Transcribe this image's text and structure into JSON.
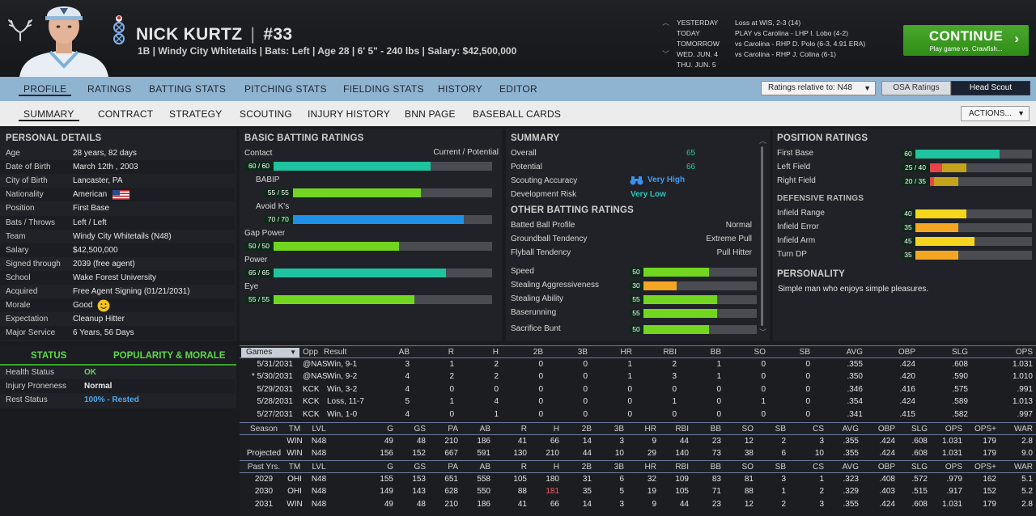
{
  "player": {
    "name": "NICK KURTZ",
    "separator": "|",
    "number": "#33",
    "info": "1B | Windy City Whitetails | Bats: Left | Age 28 | 6' 5\" - 240 lbs | Salary: $42,500,000"
  },
  "schedule": [
    {
      "day": "YESTERDAY",
      "text": "Loss at WIS, 2-3 (14)"
    },
    {
      "day": "TODAY",
      "text": "PLAY vs Carolina - LHP I. Lobo (4-2)"
    },
    {
      "day": "TOMORROW",
      "text": "vs Carolina - RHP D. Polo (6-3, 4.91 ERA)"
    },
    {
      "day": "WED. JUN. 4",
      "text": "vs Carolina - RHP J. Colina (6-1)"
    },
    {
      "day": "THU. JUN. 5",
      "text": ""
    }
  ],
  "continue": {
    "label": "CONTINUE",
    "sub": "Play game vs. Crawfish...",
    "chevron": "›"
  },
  "nav1": {
    "tabs": [
      "PROFILE",
      "RATINGS",
      "BATTING STATS",
      "PITCHING STATS",
      "FIELDING STATS",
      "HISTORY",
      "EDITOR"
    ],
    "ratings_relative": "Ratings relative to: N48",
    "osa": "OSA Ratings",
    "head_scout": "Head Scout"
  },
  "nav2": {
    "tabs": [
      "SUMMARY",
      "CONTRACT",
      "STRATEGY",
      "SCOUTING",
      "INJURY HISTORY",
      "BNN PAGE",
      "BASEBALL CARDS"
    ],
    "actions": "ACTIONS..."
  },
  "personal": {
    "title": "PERSONAL DETAILS",
    "rows": [
      {
        "k": "Age",
        "v": "28 years, 82 days"
      },
      {
        "k": "Date of Birth",
        "v": "March 12th , 2003"
      },
      {
        "k": "City of Birth",
        "v": "Lancaster, PA"
      },
      {
        "k": "Nationality",
        "v": "American"
      },
      {
        "k": "Position",
        "v": "First Base"
      },
      {
        "k": "Bats / Throws",
        "v": "Left / Left"
      },
      {
        "k": "Team",
        "v": "Windy City Whitetails (N48)"
      },
      {
        "k": "Salary",
        "v": "$42,500,000"
      },
      {
        "k": "Signed through",
        "v": "2039 (free agent)"
      },
      {
        "k": "School",
        "v": "Wake Forest University"
      },
      {
        "k": "Acquired",
        "v": "Free Agent Signing (01/21/2031)"
      },
      {
        "k": "Morale",
        "v": "Good"
      },
      {
        "k": "Expectation",
        "v": "Cleanup Hitter"
      },
      {
        "k": "Major Service",
        "v": "6 Years, 56 Days"
      }
    ]
  },
  "status": {
    "tab_status": "STATUS",
    "tab_pop": "POPULARITY & MORALE",
    "rows": [
      {
        "k": "Health Status",
        "v": "OK",
        "color": "#5fd35f"
      },
      {
        "k": "Injury Proneness",
        "v": "Normal",
        "color": "#e8e8e8"
      },
      {
        "k": "Rest Status",
        "v": "100% - Rested",
        "color": "#4aa8f0"
      }
    ]
  },
  "batting": {
    "title": "BASIC BATTING RATINGS",
    "col_label": "Current / Potential",
    "rows": [
      {
        "label": "Contact",
        "value": "60 / 60",
        "cur": 60,
        "color": "#1fc3a0"
      },
      {
        "label": "BABIP",
        "value": "55 / 55",
        "cur": 55,
        "color": "#72d620"
      },
      {
        "label": "Avoid K's",
        "value": "70 / 70",
        "cur": 70,
        "color": "#1e90e8"
      },
      {
        "label": "Gap Power",
        "value": "50 / 50",
        "cur": 50,
        "color": "#72d620"
      },
      {
        "label": "Power",
        "value": "65 / 65",
        "cur": 65,
        "color": "#1fc3a0"
      },
      {
        "label": "Eye",
        "value": "55 / 55",
        "cur": 55,
        "color": "#72d620"
      }
    ]
  },
  "summary": {
    "title": "SUMMARY",
    "overall_label": "Overall",
    "overall": "65",
    "potential_label": "Potential",
    "potential": "66",
    "scouting_label": "Scouting Accuracy",
    "scouting": "Very High",
    "devrisk_label": "Development Risk",
    "devrisk": "Very Low",
    "other_title": "OTHER BATTING RATINGS",
    "other": [
      {
        "k": "Batted Ball Profile",
        "v": "Normal"
      },
      {
        "k": "Groundball Tendency",
        "v": "Extreme Pull"
      },
      {
        "k": "Flyball Tendency",
        "v": "Pull Hitter"
      }
    ],
    "speed": [
      {
        "k": "Speed",
        "v": "50",
        "cur": 50,
        "color": "#72d620"
      },
      {
        "k": "Stealing Aggressiveness",
        "v": "30",
        "cur": 30,
        "color": "#f5a623"
      },
      {
        "k": "Stealing Ability",
        "v": "55",
        "cur": 55,
        "color": "#72d620"
      },
      {
        "k": "Baserunning",
        "v": "55",
        "cur": 55,
        "color": "#72d620"
      },
      {
        "k": "Sacrifice Bunt",
        "v": "50",
        "cur": 50,
        "color": "#72d620"
      }
    ]
  },
  "positions": {
    "title": "POSITION RATINGS",
    "rows": [
      {
        "k": "First Base",
        "v": "60",
        "cur": 60,
        "pot": 60,
        "color": "#1fc3a0"
      },
      {
        "k": "Left Field",
        "v": "25 / 40",
        "cur": 25,
        "pot": 40,
        "color": "#e8434a"
      },
      {
        "k": "Right Field",
        "v": "20 / 35",
        "cur": 20,
        "pot": 35,
        "color": "#e8434a"
      }
    ],
    "def_title": "DEFENSIVE RATINGS",
    "def": [
      {
        "k": "Infield Range",
        "v": "40",
        "cur": 40,
        "color": "#f5d61c"
      },
      {
        "k": "Infield Error",
        "v": "35",
        "cur": 35,
        "color": "#f5a623"
      },
      {
        "k": "Infield Arm",
        "v": "45",
        "cur": 45,
        "color": "#f5d61c"
      },
      {
        "k": "Turn DP",
        "v": "35",
        "cur": 35,
        "color": "#f5a623"
      }
    ],
    "pers_title": "PERSONALITY",
    "pers_text": "Simple man who enjoys simple pleasures."
  },
  "games": {
    "selector": "Games",
    "cols": [
      "Opp",
      "Result",
      "AB",
      "R",
      "H",
      "2B",
      "3B",
      "HR",
      "RBI",
      "BB",
      "SO",
      "SB",
      "AVG",
      "OBP",
      "SLG",
      "OPS"
    ],
    "rows": [
      {
        "date": "5/31/2031",
        "opp": "@NAS",
        "res": "Win, 9-1",
        "vals": [
          "3",
          "1",
          "2",
          "0",
          "0",
          "1",
          "2",
          "1",
          "0",
          "0",
          ".355",
          ".424",
          ".608",
          "1.031"
        ]
      },
      {
        "date": "* 5/30/2031",
        "opp": "@NAS",
        "res": "Win, 9-2",
        "vals": [
          "4",
          "2",
          "2",
          "0",
          "0",
          "1",
          "3",
          "1",
          "0",
          "0",
          ".350",
          ".420",
          ".590",
          "1.010"
        ]
      },
      {
        "date": "5/29/2031",
        "opp": "KCK",
        "res": "Win, 3-2",
        "vals": [
          "4",
          "0",
          "0",
          "0",
          "0",
          "0",
          "0",
          "0",
          "0",
          "0",
          ".346",
          ".416",
          ".575",
          ".991"
        ]
      },
      {
        "date": "5/28/2031",
        "opp": "KCK",
        "res": "Loss, 11-7",
        "vals": [
          "5",
          "1",
          "4",
          "0",
          "0",
          "0",
          "1",
          "0",
          "1",
          "0",
          ".354",
          ".424",
          ".589",
          "1.013"
        ]
      },
      {
        "date": "5/27/2031",
        "opp": "KCK",
        "res": "Win, 1-0",
        "vals": [
          "4",
          "0",
          "1",
          "0",
          "0",
          "0",
          "0",
          "0",
          "0",
          "0",
          ".341",
          ".415",
          ".582",
          ".997"
        ]
      }
    ]
  },
  "season": {
    "cols": [
      "Season",
      "TM",
      "LVL",
      "G",
      "GS",
      "PA",
      "AB",
      "R",
      "H",
      "2B",
      "3B",
      "HR",
      "RBI",
      "BB",
      "SO",
      "SB",
      "CS",
      "AVG",
      "OBP",
      "SLG",
      "OPS",
      "OPS+",
      "WAR"
    ],
    "rows": [
      {
        "label": "",
        "vals": [
          "WIN",
          "N48",
          "49",
          "48",
          "210",
          "186",
          "41",
          "66",
          "14",
          "3",
          "9",
          "44",
          "23",
          "12",
          "2",
          "3",
          ".355",
          ".424",
          ".608",
          "1.031",
          "179",
          "2.8"
        ]
      },
      {
        "label": "Projected",
        "vals": [
          "WIN",
          "N48",
          "156",
          "152",
          "667",
          "591",
          "130",
          "210",
          "44",
          "10",
          "29",
          "140",
          "73",
          "38",
          "6",
          "10",
          ".355",
          ".424",
          ".608",
          "1.031",
          "179",
          "9.0"
        ]
      }
    ]
  },
  "past": {
    "cols": [
      "Past Yrs.",
      "TM",
      "LVL",
      "G",
      "GS",
      "PA",
      "AB",
      "R",
      "H",
      "2B",
      "3B",
      "HR",
      "RBI",
      "BB",
      "SO",
      "SB",
      "CS",
      "AVG",
      "OBP",
      "SLG",
      "OPS",
      "OPS+",
      "WAR"
    ],
    "rows": [
      {
        "label": "2029",
        "vals": [
          "OHI",
          "N48",
          "155",
          "153",
          "651",
          "558",
          "105",
          "180",
          "31",
          "6",
          "32",
          "109",
          "83",
          "81",
          "3",
          "1",
          ".323",
          ".408",
          ".572",
          ".979",
          "162",
          "5.1"
        ]
      },
      {
        "label": "2030",
        "vals": [
          "OHI",
          "N48",
          "149",
          "143",
          "628",
          "550",
          "88",
          "181",
          "35",
          "5",
          "19",
          "105",
          "71",
          "88",
          "1",
          "2",
          ".329",
          ".403",
          ".515",
          ".917",
          "152",
          "5.2"
        ]
      },
      {
        "label": "2031",
        "vals": [
          "WIN",
          "N48",
          "49",
          "48",
          "210",
          "186",
          "41",
          "66",
          "14",
          "3",
          "9",
          "44",
          "23",
          "12",
          "2",
          "3",
          ".355",
          ".424",
          ".608",
          "1.031",
          "179",
          "2.8"
        ]
      }
    ]
  }
}
